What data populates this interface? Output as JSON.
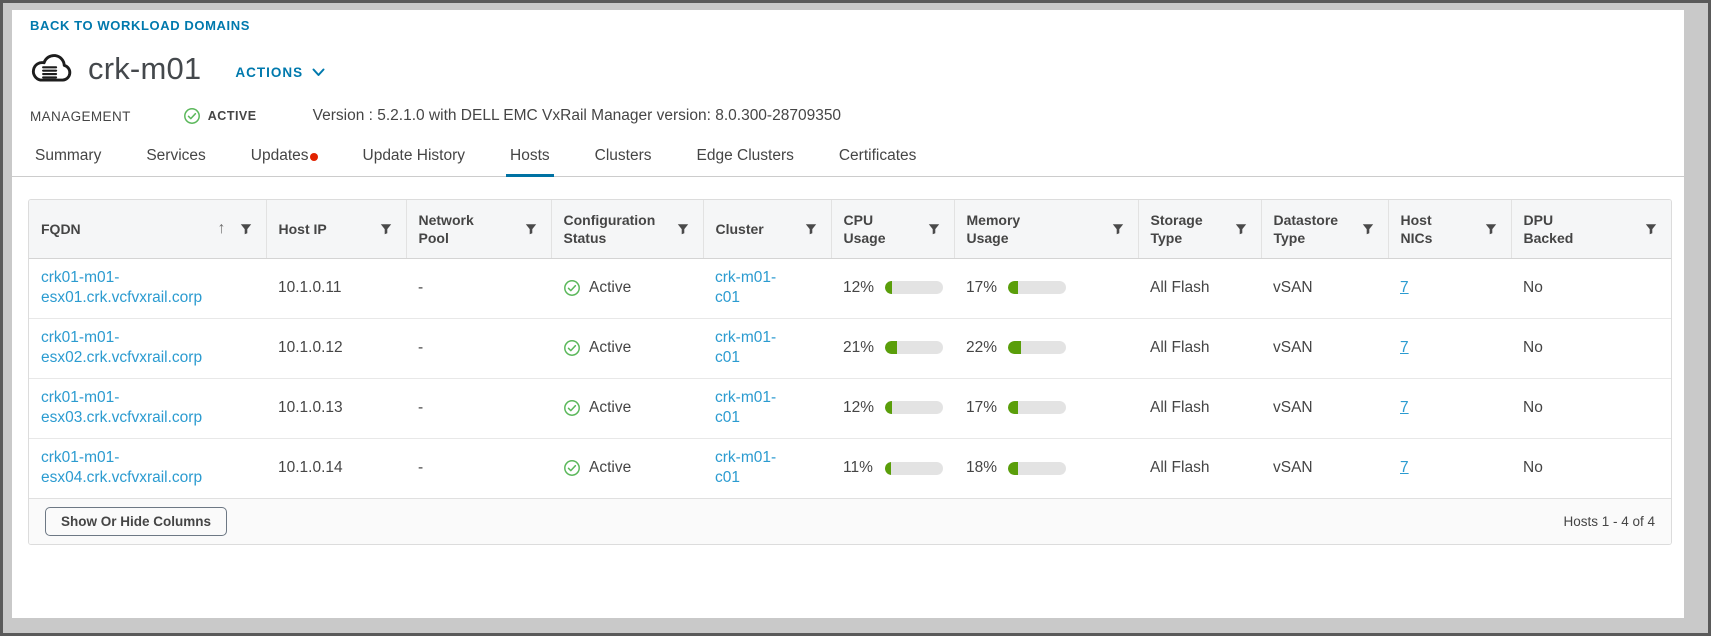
{
  "colors": {
    "accent_blue": "#0079ad",
    "link_blue": "#2b9bd0",
    "tab_active_blue": "#0072a3",
    "success_green": "#5cb85c",
    "bar_green": "#5a9e0a",
    "alert_red": "#e12200"
  },
  "header": {
    "back_link": "BACK TO WORKLOAD DOMAINS",
    "domain_icon": "cloud-domain-icon",
    "title": "crk-m01",
    "actions_label": "ACTIONS",
    "type_label": "MANAGEMENT",
    "status_label": "ACTIVE",
    "version_text": "Version : 5.2.1.0 with DELL EMC VxRail Manager version: 8.0.300-28709350"
  },
  "tabs": [
    {
      "label": "Summary",
      "active": false,
      "badge": false
    },
    {
      "label": "Services",
      "active": false,
      "badge": false
    },
    {
      "label": "Updates",
      "active": false,
      "badge": true
    },
    {
      "label": "Update History",
      "active": false,
      "badge": false
    },
    {
      "label": "Hosts",
      "active": true,
      "badge": false
    },
    {
      "label": "Clusters",
      "active": false,
      "badge": false
    },
    {
      "label": "Edge Clusters",
      "active": false,
      "badge": false
    },
    {
      "label": "Certificates",
      "active": false,
      "badge": false
    }
  ],
  "table": {
    "columns": [
      {
        "label": "FQDN",
        "sortable": true,
        "filterable": true
      },
      {
        "label": "Host IP",
        "sortable": false,
        "filterable": true
      },
      {
        "label": "Network\nPool",
        "sortable": false,
        "filterable": true
      },
      {
        "label": "Configuration\nStatus",
        "sortable": false,
        "filterable": true
      },
      {
        "label": "Cluster",
        "sortable": false,
        "filterable": true
      },
      {
        "label": "CPU\nUsage",
        "sortable": false,
        "filterable": true
      },
      {
        "label": "Memory\nUsage",
        "sortable": false,
        "filterable": true
      },
      {
        "label": "Storage\nType",
        "sortable": false,
        "filterable": true
      },
      {
        "label": "Datastore\nType",
        "sortable": false,
        "filterable": true
      },
      {
        "label": "Host\nNICs",
        "sortable": false,
        "filterable": true
      },
      {
        "label": "DPU\nBacked",
        "sortable": false,
        "filterable": true
      }
    ],
    "rows": [
      {
        "fqdn": "crk01-m01-esx01.crk.vcfvxrail.corp",
        "host_ip": "10.1.0.11",
        "network_pool": "-",
        "config_status": "Active",
        "cluster": "crk-m01-c01",
        "cpu_label": "12%",
        "cpu_value": 12,
        "mem_label": "17%",
        "mem_value": 17,
        "storage_type": "All Flash",
        "datastore_type": "vSAN",
        "host_nics": "7",
        "dpu_backed": "No"
      },
      {
        "fqdn": "crk01-m01-esx02.crk.vcfvxrail.corp",
        "host_ip": "10.1.0.12",
        "network_pool": "-",
        "config_status": "Active",
        "cluster": "crk-m01-c01",
        "cpu_label": "21%",
        "cpu_value": 21,
        "mem_label": "22%",
        "mem_value": 22,
        "storage_type": "All Flash",
        "datastore_type": "vSAN",
        "host_nics": "7",
        "dpu_backed": "No"
      },
      {
        "fqdn": "crk01-m01-esx03.crk.vcfvxrail.corp",
        "host_ip": "10.1.0.13",
        "network_pool": "-",
        "config_status": "Active",
        "cluster": "crk-m01-c01",
        "cpu_label": "12%",
        "cpu_value": 12,
        "mem_label": "17%",
        "mem_value": 17,
        "storage_type": "All Flash",
        "datastore_type": "vSAN",
        "host_nics": "7",
        "dpu_backed": "No"
      },
      {
        "fqdn": "crk01-m01-esx04.crk.vcfvxrail.corp",
        "host_ip": "10.1.0.14",
        "network_pool": "-",
        "config_status": "Active",
        "cluster": "crk-m01-c01",
        "cpu_label": "11%",
        "cpu_value": 11,
        "mem_label": "18%",
        "mem_value": 18,
        "storage_type": "All Flash",
        "datastore_type": "vSAN",
        "host_nics": "7",
        "dpu_backed": "No"
      }
    ],
    "footer": {
      "columns_button_label": "Show Or Hide Columns",
      "count_text": "Hosts 1 - 4 of 4"
    }
  }
}
